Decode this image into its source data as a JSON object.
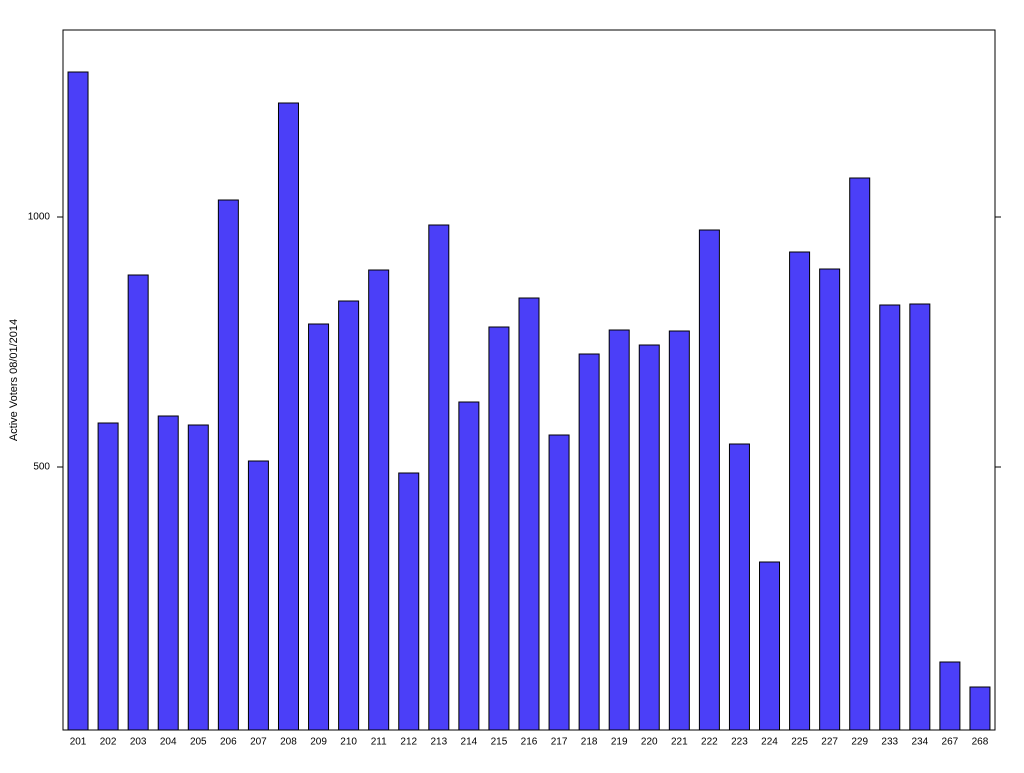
{
  "chart_data": {
    "type": "bar",
    "ylabel": "Active Voters 08/01/2014",
    "categories": [
      "201",
      "202",
      "203",
      "204",
      "205",
      "206",
      "207",
      "208",
      "209",
      "210",
      "211",
      "212",
      "213",
      "214",
      "215",
      "216",
      "217",
      "218",
      "219",
      "220",
      "221",
      "222",
      "223",
      "224",
      "225",
      "227",
      "229",
      "233",
      "234",
      "267",
      "268"
    ],
    "values": [
      1290,
      588,
      884,
      602,
      584,
      1034,
      512,
      1228,
      786,
      832,
      894,
      488,
      984,
      630,
      780,
      838,
      564,
      726,
      774,
      744,
      772,
      974,
      546,
      310,
      930,
      896,
      1078,
      824,
      826,
      110,
      60
    ],
    "color": "#4b3ff8",
    "ylim": [
      -26,
      1374
    ],
    "yticks": [
      500,
      1000
    ]
  }
}
